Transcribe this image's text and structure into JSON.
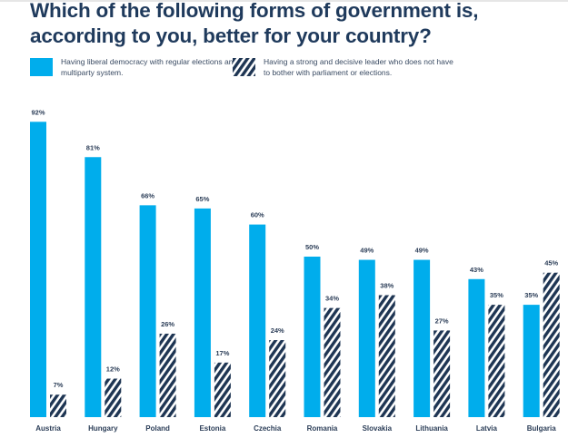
{
  "chart_data": {
    "type": "bar",
    "title": "Which of the following forms of government is, according to you, better for your country?",
    "xlabel": "",
    "ylabel": "",
    "ylim": [
      0,
      100
    ],
    "grid": false,
    "legend_position": "top-left",
    "categories": [
      "Austria",
      "Hungary",
      "Poland",
      "Estonia",
      "Czechia",
      "Romania",
      "Slovakia",
      "Lithuania",
      "Latvia",
      "Bulgaria"
    ],
    "series": [
      {
        "name": "Having liberal democracy with regular elections and multiparty system.",
        "style": "solid",
        "color": "#00adec",
        "values": [
          92,
          81,
          66,
          65,
          60,
          50,
          49,
          49,
          43,
          35
        ]
      },
      {
        "name": "Having a strong and decisive leader who does not have to bother with parliament or elections.",
        "style": "hatched",
        "color": "#1e3553",
        "values": [
          7,
          12,
          26,
          17,
          24,
          34,
          38,
          27,
          35,
          45
        ]
      }
    ],
    "value_suffix": "%"
  },
  "legend": {
    "item1": "Having liberal democracy with regular elections and multiparty system.",
    "item2": "Having a strong and decisive leader who does not have to bother with parliament or elections."
  }
}
